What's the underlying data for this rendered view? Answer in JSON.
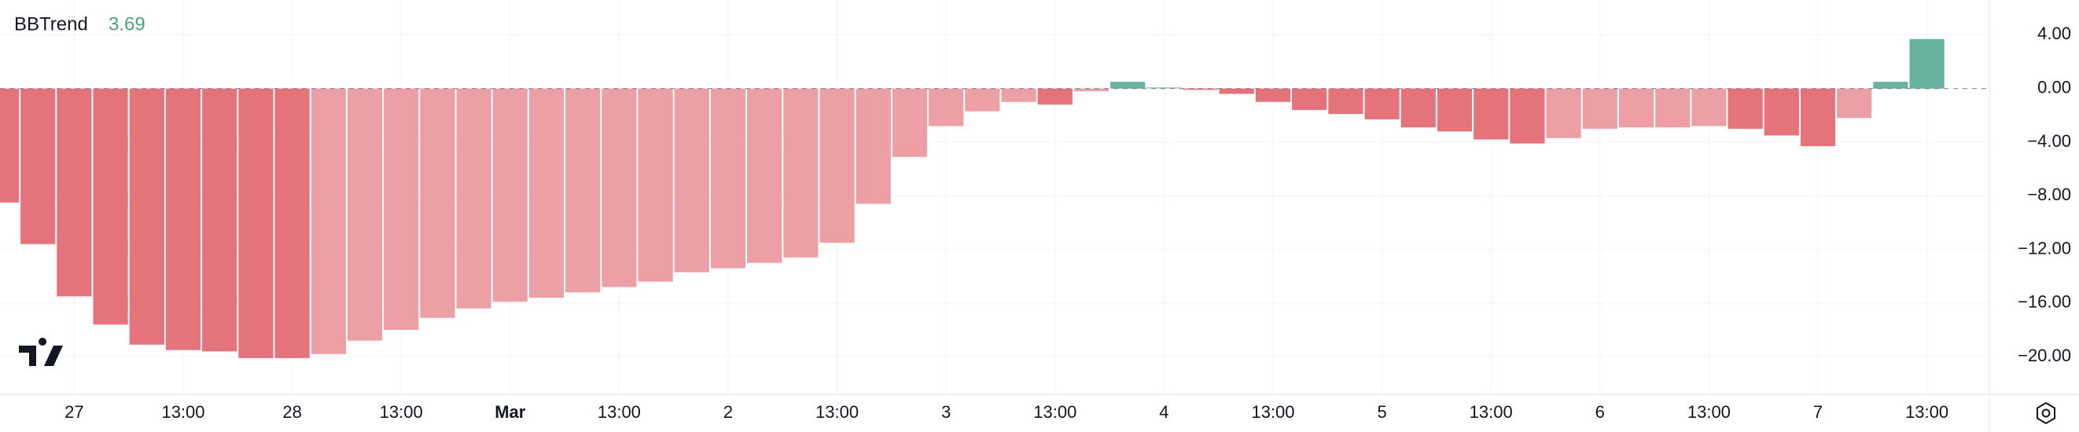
{
  "chart_data": {
    "type": "bar",
    "title": "BBTrend",
    "last_value": 3.69,
    "last_value_color": "#4e9e86",
    "categories": [
      null,
      null,
      "27",
      null,
      null,
      "13:00",
      null,
      null,
      "28",
      null,
      null,
      "13:00",
      null,
      null,
      "Mar",
      null,
      null,
      "13:00",
      null,
      null,
      "2",
      null,
      null,
      "13:00",
      null,
      null,
      "3",
      null,
      null,
      "13:00",
      null,
      null,
      "4",
      null,
      null,
      "13:00",
      null,
      null,
      "5",
      null,
      null,
      "13:00",
      null,
      null,
      "6",
      null,
      null,
      "13:00",
      null,
      null,
      "7",
      null,
      null,
      "13:00"
    ],
    "values": [
      -8.5,
      -11.6,
      -15.5,
      -17.6,
      -19.1,
      -19.5,
      -19.6,
      -20.1,
      -20.1,
      -19.8,
      -18.8,
      -18.0,
      -17.1,
      -16.4,
      -15.9,
      -15.6,
      -15.2,
      -14.8,
      -14.4,
      -13.7,
      -13.4,
      -13.0,
      -12.6,
      -11.5,
      -8.6,
      -5.1,
      -2.8,
      -1.7,
      -1.0,
      -1.2,
      -0.2,
      0.5,
      0.1,
      -0.1,
      -0.4,
      -1.0,
      -1.6,
      -1.9,
      -2.3,
      -2.9,
      -3.2,
      -3.8,
      -4.1,
      -3.7,
      -3.0,
      -2.9,
      -2.9,
      -2.8,
      -3.0,
      -3.5,
      -4.3,
      -2.2,
      0.5,
      3.69
    ],
    "colors": [
      "#e5737b",
      "#e5737b",
      "#e5737b",
      "#e5737b",
      "#e5737b",
      "#e5737b",
      "#e5737b",
      "#e5737b",
      "#e5737b",
      "#eca0a6",
      "#eca0a6",
      "#eca0a6",
      "#eca0a6",
      "#eca0a6",
      "#eca0a6",
      "#eca0a6",
      "#eca0a6",
      "#eca0a6",
      "#eca0a6",
      "#eca0a6",
      "#eca0a6",
      "#eca0a6",
      "#eca0a6",
      "#eca0a6",
      "#eca0a6",
      "#eca0a6",
      "#eca0a6",
      "#eca0a6",
      "#eca0a6",
      "#e5737b",
      "#eca0a6",
      "#66b3a0",
      "#a7d6c9",
      "#e5737b",
      "#e5737b",
      "#e5737b",
      "#e5737b",
      "#e5737b",
      "#e5737b",
      "#e5737b",
      "#e5737b",
      "#e5737b",
      "#e5737b",
      "#eca0a6",
      "#eca0a6",
      "#eca0a6",
      "#eca0a6",
      "#eca0a6",
      "#e5737b",
      "#e5737b",
      "#e5737b",
      "#eca0a6",
      "#66b3a0",
      "#66b3a0"
    ],
    "ylim": [
      -22.8,
      6.6
    ],
    "yticks": [
      {
        "value": 4,
        "label": "4.00"
      },
      {
        "value": 0,
        "label": "0.00"
      },
      {
        "value": -4,
        "label": "−4.00"
      },
      {
        "value": -8,
        "label": "−8.00"
      },
      {
        "value": -12,
        "label": "−12.00"
      },
      {
        "value": -16,
        "label": "−16.00"
      },
      {
        "value": -20,
        "label": "−20.00"
      }
    ],
    "grid": true
  }
}
